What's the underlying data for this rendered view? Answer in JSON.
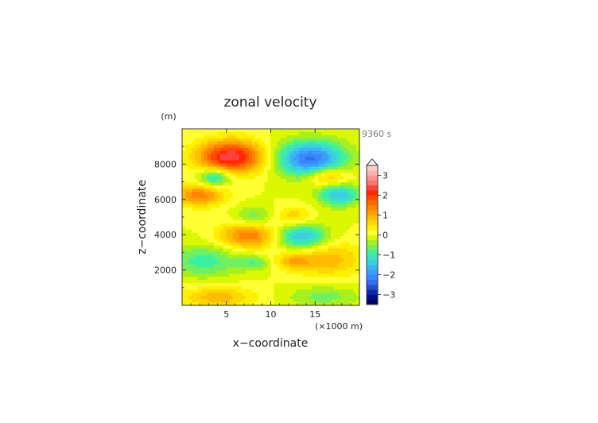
{
  "chart_data": {
    "type": "heatmap",
    "title": "zonal velocity",
    "time_label": "9360 s",
    "xlabel": "x−coordinate",
    "ylabel": "z−coordinate",
    "x_unit": "(×1000 m)",
    "y_unit": "(m)",
    "xlim": [
      0,
      20
    ],
    "ylim": [
      0,
      10000
    ],
    "xticks": [
      5,
      10,
      15
    ],
    "xtick_labels": [
      "5",
      "10",
      "15"
    ],
    "yticks": [
      2000,
      4000,
      6000,
      8000
    ],
    "ytick_labels": [
      "2000",
      "4000",
      "6000",
      "8000"
    ],
    "colorbar": {
      "levels": [
        -3.5,
        -3.25,
        -3,
        -2.75,
        -2.5,
        -2.25,
        -2,
        -1.75,
        -1.5,
        -1.25,
        -1,
        -0.75,
        -0.5,
        -0.25,
        0,
        0.25,
        0.5,
        0.75,
        1,
        1.25,
        1.5,
        1.75,
        2,
        2.25,
        2.5,
        2.75,
        3,
        3.25,
        3.5
      ],
      "colors": [
        "#000066",
        "#00108a",
        "#0a2aa8",
        "#1f4fd0",
        "#2f6ff0",
        "#3a86ff",
        "#3a9dff",
        "#3ab6f5",
        "#3ad0e0",
        "#3ce0c4",
        "#3cf0a0",
        "#70f060",
        "#a6f020",
        "#dcf800",
        "#ffff33",
        "#fff000",
        "#ffd700",
        "#ffbc00",
        "#ffa000",
        "#ff8400",
        "#ff6600",
        "#ff4800",
        "#ff2800",
        "#ff4040",
        "#ff7070",
        "#ff9090",
        "#ffb0b0",
        "#ffcaca"
      ],
      "tick_values": [
        -3,
        -2,
        -1,
        0,
        1,
        2,
        3
      ],
      "tick_labels": [
        "−3",
        "−2",
        "−1",
        "0",
        "1",
        "2",
        "3"
      ],
      "extend": "max"
    },
    "field_components": [
      {
        "x": 5.5,
        "z": 8400,
        "amp": 2.5,
        "sx": 2.6,
        "sz": 650
      },
      {
        "x": 14.5,
        "z": 8300,
        "amp": -2.3,
        "sx": 2.7,
        "sz": 700
      },
      {
        "x": 3.7,
        "z": 7250,
        "amp": -1.4,
        "sx": 1.3,
        "sz": 380
      },
      {
        "x": 16.5,
        "z": 7300,
        "amp": 1.2,
        "sx": 1.6,
        "sz": 380
      },
      {
        "x": 2.0,
        "z": 6250,
        "amp": 1.4,
        "sx": 2.0,
        "sz": 450
      },
      {
        "x": 17.7,
        "z": 6250,
        "amp": -1.5,
        "sx": 1.6,
        "sz": 450
      },
      {
        "x": 8.0,
        "z": 5000,
        "amp": -0.7,
        "sx": 1.4,
        "sz": 420
      },
      {
        "x": 12.7,
        "z": 5000,
        "amp": 0.7,
        "sx": 1.4,
        "sz": 420
      },
      {
        "x": 7.5,
        "z": 3950,
        "amp": 1.5,
        "sx": 2.3,
        "sz": 520
      },
      {
        "x": 13.5,
        "z": 3900,
        "amp": -1.6,
        "sx": 2.0,
        "sz": 520
      },
      {
        "x": 2.5,
        "z": 2500,
        "amp": -0.9,
        "sx": 2.8,
        "sz": 650
      },
      {
        "x": 16.5,
        "z": 2600,
        "amp": 0.9,
        "sx": 2.8,
        "sz": 700
      },
      {
        "x": 8.2,
        "z": 2400,
        "amp": -0.7,
        "sx": 1.3,
        "sz": 300
      },
      {
        "x": 12.5,
        "z": 2500,
        "amp": 0.8,
        "sx": 1.5,
        "sz": 330
      },
      {
        "x": 4.0,
        "z": 450,
        "amp": 0.9,
        "sx": 3.0,
        "sz": 420
      },
      {
        "x": 16.0,
        "z": 500,
        "amp": -0.6,
        "sx": 3.0,
        "sz": 450
      }
    ]
  }
}
